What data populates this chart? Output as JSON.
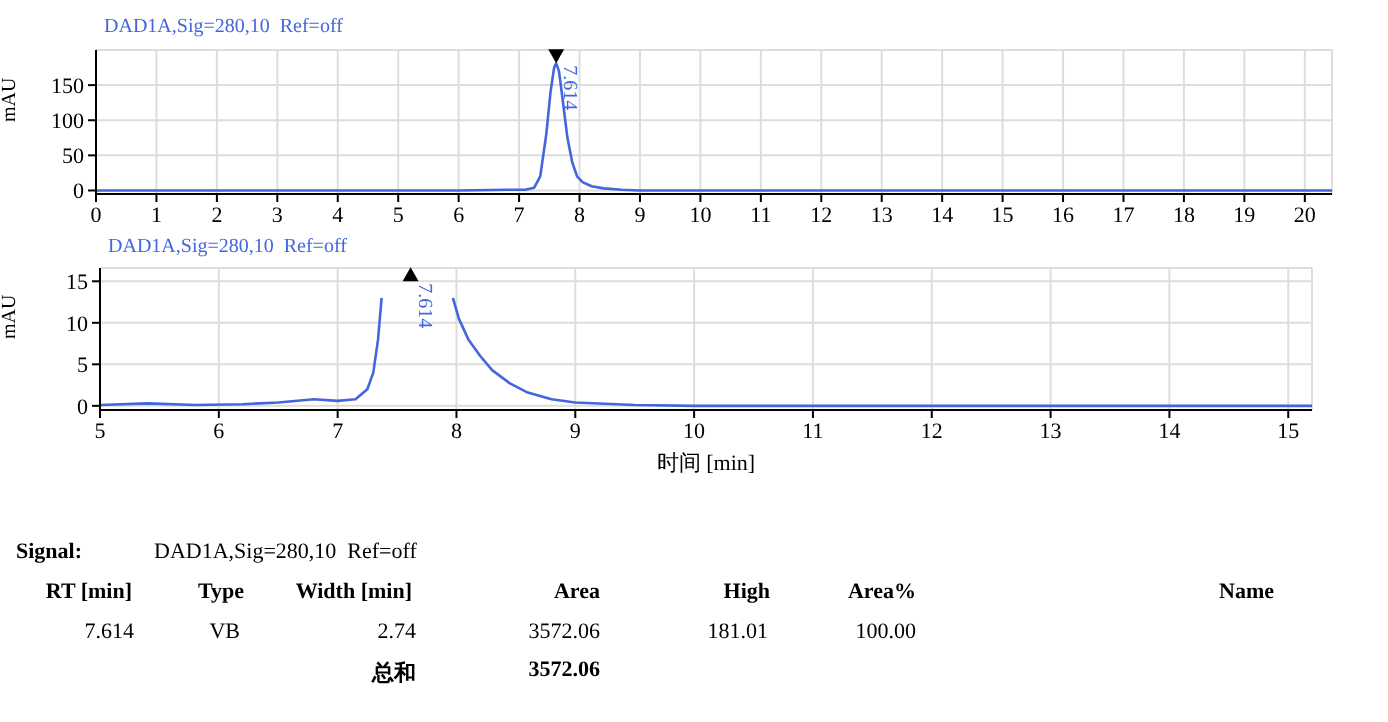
{
  "chart_data": [
    {
      "type": "line",
      "title": "DAD1A,Sig=280,10  Ref=off",
      "ylabel": "mAU",
      "xlim": [
        0,
        20.45
      ],
      "ylim": [
        -5,
        200
      ],
      "xticks": [
        0,
        1,
        2,
        3,
        4,
        5,
        6,
        7,
        8,
        9,
        10,
        11,
        12,
        13,
        14,
        15,
        16,
        17,
        18,
        19,
        20
      ],
      "yticks": [
        0,
        50,
        100,
        150
      ],
      "grid": true,
      "marker": "none",
      "line_style": "solid",
      "annotations": [
        {
          "text": "7.614",
          "x": 7.614,
          "y": 181
        }
      ],
      "series": [
        {
          "color": "#4466dd",
          "x": [
            0,
            2,
            4,
            6,
            6.8,
            7.1,
            7.25,
            7.35,
            7.45,
            7.52,
            7.58,
            7.614,
            7.66,
            7.72,
            7.8,
            7.88,
            7.96,
            8.05,
            8.2,
            8.4,
            8.7,
            9,
            10,
            15,
            20.45
          ],
          "values": [
            0,
            0,
            0,
            0,
            1,
            1,
            4,
            20,
            80,
            140,
            175,
            181,
            170,
            130,
            75,
            40,
            20,
            12,
            6,
            3,
            1,
            0,
            0,
            0,
            0
          ]
        }
      ]
    },
    {
      "type": "line",
      "title": "DAD1A,Sig=280,10  Ref=off",
      "xlabel": "时间 [min]",
      "ylabel": "mAU",
      "xlim": [
        5,
        15.2
      ],
      "ylim": [
        -0.5,
        16.6
      ],
      "xticks": [
        5,
        6,
        7,
        8,
        9,
        10,
        11,
        12,
        13,
        14,
        15
      ],
      "yticks": [
        0,
        5,
        10,
        15
      ],
      "grid": true,
      "marker": "none",
      "line_style": "solid",
      "annotations": [
        {
          "text": "7.614",
          "x": 7.614,
          "y": 15.5
        }
      ],
      "series": [
        {
          "color": "#4466dd",
          "x": [
            5,
            5.4,
            5.8,
            6.2,
            6.5,
            6.8,
            7.0,
            7.15,
            7.25,
            7.3,
            7.34,
            7.37,
            7.39,
            7.6,
            7.94,
            7.97,
            8.02,
            8.1,
            8.2,
            8.3,
            8.45,
            8.6,
            8.8,
            9.0,
            9.5,
            10,
            12,
            15.2
          ],
          "values": [
            0.1,
            0.3,
            0.1,
            0.2,
            0.4,
            0.8,
            0.6,
            0.8,
            2,
            4,
            8,
            13,
            null,
            null,
            null,
            13,
            10.5,
            8,
            6,
            4.3,
            2.7,
            1.6,
            0.8,
            0.4,
            0.1,
            0,
            0,
            0
          ]
        }
      ]
    },
    {
      "type": "other",
      "annotations": [
        "Signal:",
        "DAD1A,Sig=280,10  Ref=off",
        "RT [min]",
        "Type",
        "Width [min]",
        "Area",
        "High",
        "Area%",
        "Name",
        "7.614",
        "VB",
        "2.74",
        "3572.06",
        "181.01",
        "100.00",
        "总和",
        "3572.06"
      ]
    }
  ]
}
